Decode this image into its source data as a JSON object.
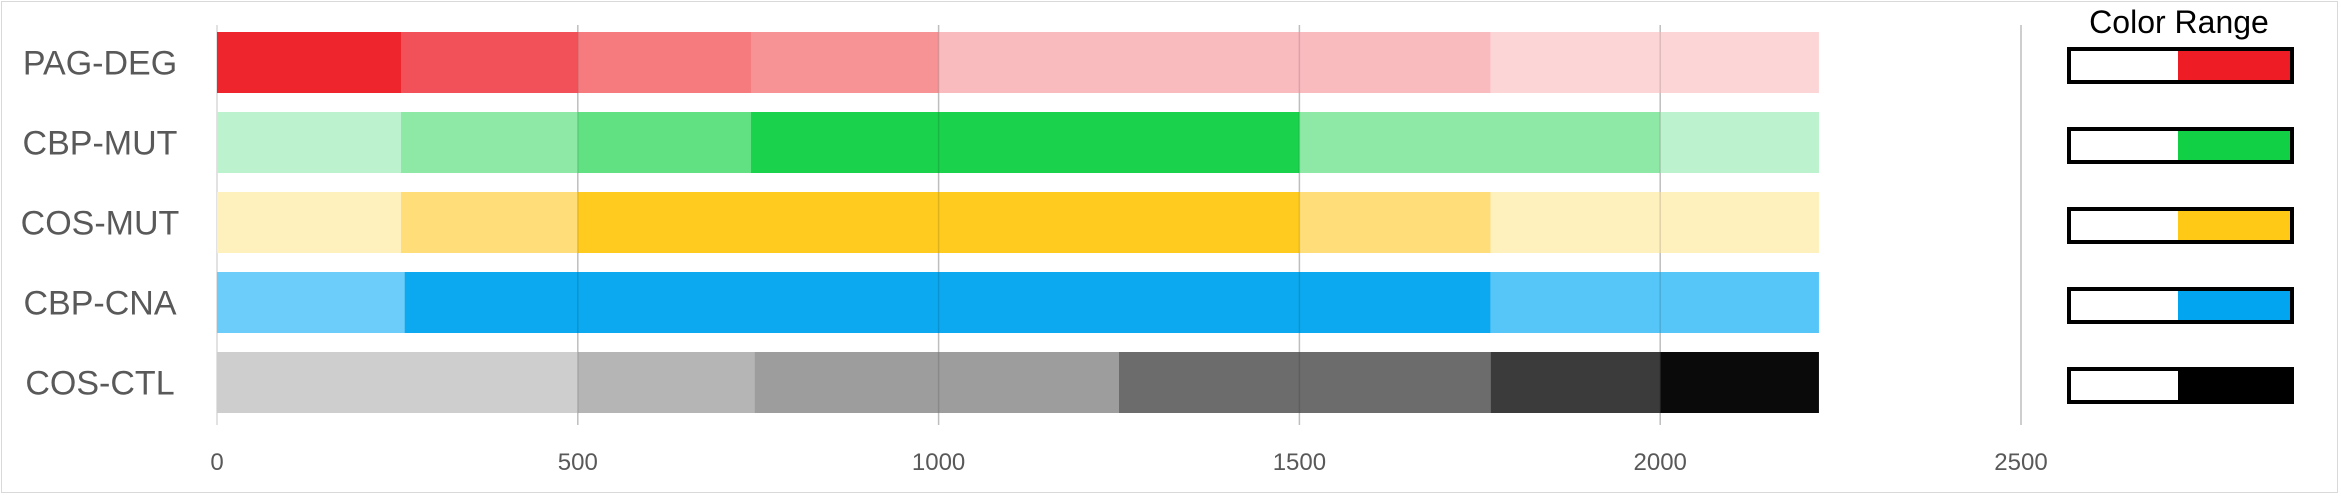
{
  "chart_data": {
    "type": "bar",
    "orientation": "horizontal",
    "stacked": true,
    "categories": [
      "PAG-DEG",
      "CBP-MUT",
      "COS-MUT",
      "CBP-CNA",
      "COS-CTL"
    ],
    "rows": [
      {
        "name": "PAG-DEG",
        "segments": [
          {
            "start": 0,
            "end": 255,
            "color": "#ee1c25"
          },
          {
            "start": 255,
            "end": 500,
            "color": "#f24a52"
          },
          {
            "start": 500,
            "end": 740,
            "color": "#f57679"
          },
          {
            "start": 740,
            "end": 1000,
            "color": "#f78e91"
          },
          {
            "start": 1000,
            "end": 1765,
            "color": "#fab8bc"
          },
          {
            "start": 1765,
            "end": 2220,
            "color": "#fcd4d5"
          }
        ]
      },
      {
        "name": "CBP-MUT",
        "segments": [
          {
            "start": 0,
            "end": 255,
            "color": "#b9f1cb"
          },
          {
            "start": 255,
            "end": 500,
            "color": "#88e8a1"
          },
          {
            "start": 500,
            "end": 740,
            "color": "#5ce07e"
          },
          {
            "start": 740,
            "end": 1500,
            "color": "#12d046"
          },
          {
            "start": 1500,
            "end": 2000,
            "color": "#88e8a1"
          },
          {
            "start": 2000,
            "end": 2220,
            "color": "#b9f1cb"
          }
        ]
      },
      {
        "name": "COS-MUT",
        "segments": [
          {
            "start": 0,
            "end": 255,
            "color": "#fef0bb"
          },
          {
            "start": 255,
            "end": 500,
            "color": "#ffdd74"
          },
          {
            "start": 500,
            "end": 1500,
            "color": "#ffc916"
          },
          {
            "start": 1500,
            "end": 1765,
            "color": "#ffdd74"
          },
          {
            "start": 1765,
            "end": 2220,
            "color": "#fef0bb"
          }
        ]
      },
      {
        "name": "CBP-CNA",
        "segments": [
          {
            "start": 0,
            "end": 260,
            "color": "#66cbfa"
          },
          {
            "start": 260,
            "end": 1765,
            "color": "#02a6f0"
          },
          {
            "start": 1765,
            "end": 2220,
            "color": "#4fc3f8"
          }
        ]
      },
      {
        "name": "COS-CTL",
        "segments": [
          {
            "start": 0,
            "end": 500,
            "color": "#cccccc"
          },
          {
            "start": 500,
            "end": 745,
            "color": "#b2b2b2"
          },
          {
            "start": 745,
            "end": 1250,
            "color": "#999999"
          },
          {
            "start": 1250,
            "end": 1765,
            "color": "#666666"
          },
          {
            "start": 1765,
            "end": 2000,
            "color": "#333333"
          },
          {
            "start": 2000,
            "end": 2220,
            "color": "#000000"
          }
        ]
      }
    ],
    "xlim": [
      0,
      2500
    ],
    "xticks": [
      "0",
      "500",
      "1000",
      "1500",
      "2000",
      "2500"
    ],
    "grid": "vertical",
    "legend": {
      "title": "Color Range",
      "placement": "right",
      "swatches": [
        {
          "name": "PAG-DEG",
          "color": "#ee1c25"
        },
        {
          "name": "CBP-MUT",
          "color": "#12d046"
        },
        {
          "name": "COS-MUT",
          "color": "#ffc916"
        },
        {
          "name": "CBP-CNA",
          "color": "#02a6f0"
        },
        {
          "name": "COS-CTL",
          "color": "#000000"
        }
      ]
    }
  }
}
